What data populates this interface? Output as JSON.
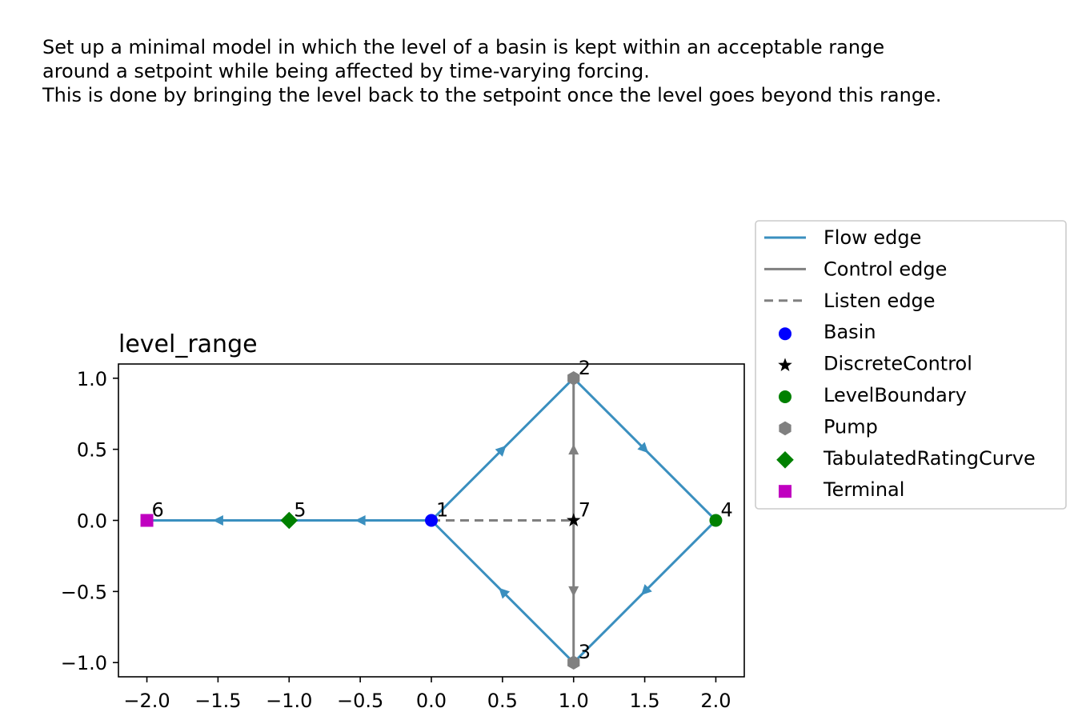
{
  "description": {
    "lines": [
      "Set up a minimal model in which the level of a basin is kept within an acceptable range",
      "around a setpoint while being affected by time-varying forcing.",
      "This is done by bringing the level back to the setpoint once the level goes beyond this range."
    ]
  },
  "chart_data": {
    "type": "scatter",
    "title": "level_range",
    "xlabel": "",
    "ylabel": "",
    "xlim": [
      -2.2,
      2.2
    ],
    "ylim": [
      -1.1,
      1.1
    ],
    "xticks": [
      -2.0,
      -1.5,
      -1.0,
      -0.5,
      0.0,
      0.5,
      1.0,
      1.5,
      2.0
    ],
    "xtick_labels": [
      "−2.0",
      "−1.5",
      "−1.0",
      "−0.5",
      "0.0",
      "0.5",
      "1.0",
      "1.5",
      "2.0"
    ],
    "yticks": [
      1.0,
      0.5,
      0.0,
      -0.5,
      -1.0
    ],
    "ytick_labels": [
      "1.0",
      "0.5",
      "0.0",
      "−0.5",
      "−1.0"
    ],
    "grid": false,
    "legend_placement": "outside right",
    "nodes": [
      {
        "id": "1",
        "type": "Basin",
        "x": 0.0,
        "y": 0.0
      },
      {
        "id": "2",
        "type": "Pump",
        "x": 1.0,
        "y": 1.0
      },
      {
        "id": "3",
        "type": "Pump",
        "x": 1.0,
        "y": -1.0
      },
      {
        "id": "4",
        "type": "LevelBoundary",
        "x": 2.0,
        "y": 0.0
      },
      {
        "id": "5",
        "type": "TabulatedRatingCurve",
        "x": -1.0,
        "y": 0.0
      },
      {
        "id": "6",
        "type": "Terminal",
        "x": -2.0,
        "y": 0.0
      },
      {
        "id": "7",
        "type": "DiscreteControl",
        "x": 1.0,
        "y": 0.0
      }
    ],
    "edges": [
      {
        "from": "1",
        "to": "2",
        "kind": "flow"
      },
      {
        "from": "2",
        "to": "4",
        "kind": "flow"
      },
      {
        "from": "4",
        "to": "3",
        "kind": "flow"
      },
      {
        "from": "3",
        "to": "1",
        "kind": "flow"
      },
      {
        "from": "1",
        "to": "5",
        "kind": "flow"
      },
      {
        "from": "5",
        "to": "6",
        "kind": "flow"
      },
      {
        "from": "7",
        "to": "2",
        "kind": "control"
      },
      {
        "from": "7",
        "to": "3",
        "kind": "control"
      },
      {
        "from": "1",
        "to": "7",
        "kind": "listen"
      }
    ],
    "legend": [
      {
        "label": "Flow edge",
        "kind": "line",
        "color": "#3a8fbf",
        "style": "solid"
      },
      {
        "label": "Control edge",
        "kind": "line",
        "color": "#808080",
        "style": "solid"
      },
      {
        "label": "Listen edge",
        "kind": "line",
        "color": "#808080",
        "style": "dashed"
      },
      {
        "label": "Basin",
        "kind": "marker",
        "marker": "circle",
        "color": "#0000ff"
      },
      {
        "label": "DiscreteControl",
        "kind": "marker",
        "marker": "star",
        "color": "#000000"
      },
      {
        "label": "LevelBoundary",
        "kind": "marker",
        "marker": "circle",
        "color": "#008000"
      },
      {
        "label": "Pump",
        "kind": "marker",
        "marker": "hexagon",
        "color": "#808080"
      },
      {
        "label": "TabulatedRatingCurve",
        "kind": "marker",
        "marker": "diamond",
        "color": "#008000"
      },
      {
        "label": "Terminal",
        "kind": "marker",
        "marker": "square",
        "color": "#c000c0"
      }
    ],
    "colors": {
      "flow_edge": "#3a8fbf",
      "control_edge": "#808080",
      "listen_edge": "#808080"
    }
  }
}
